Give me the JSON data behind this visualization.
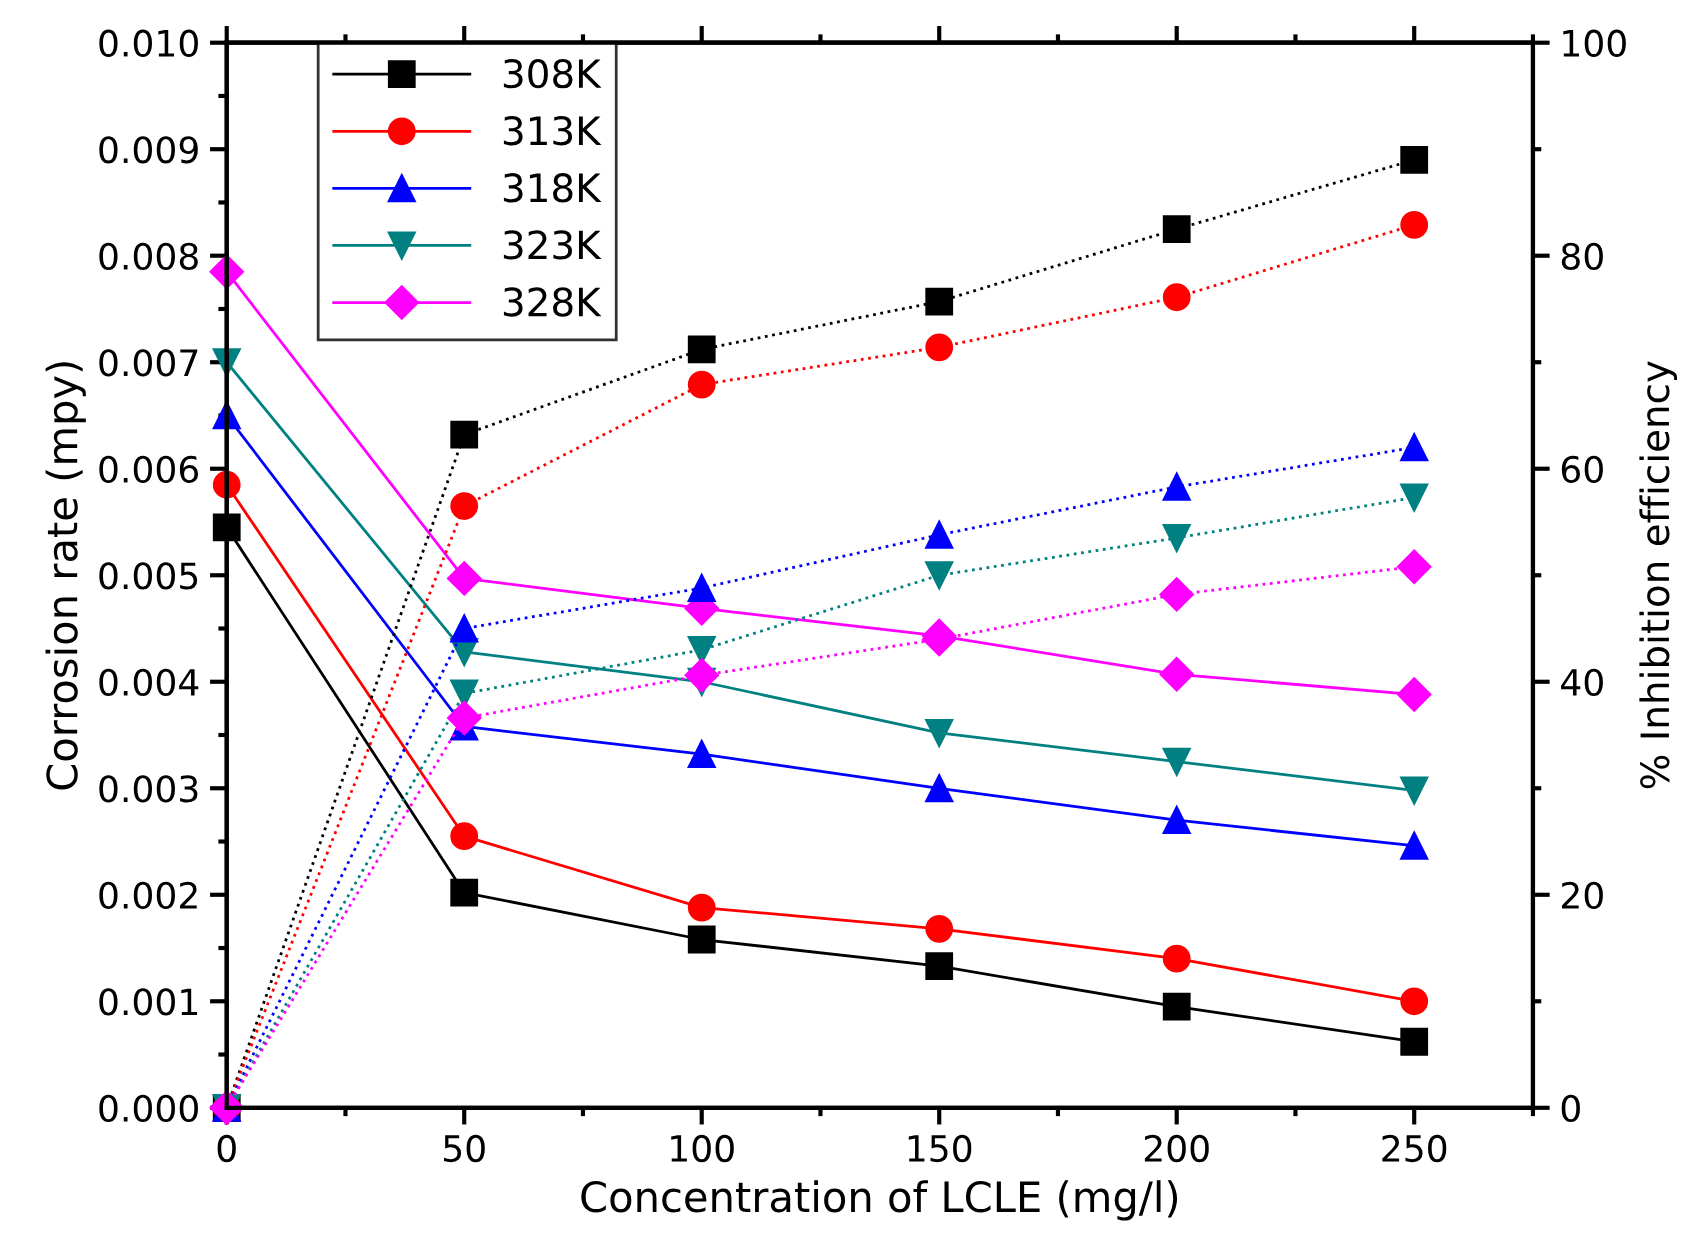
{
  "chart_data": {
    "type": "line",
    "xlabel": "Concentration of LCLE (mg/l)",
    "ylabel": "Corrosion rate (mpy)",
    "y2label": "% Inhibition efficiency",
    "x": [
      0,
      50,
      100,
      150,
      200,
      250
    ],
    "xlim": [
      0,
      275
    ],
    "xticks": [
      0,
      50,
      100,
      150,
      200,
      250
    ],
    "ylim": [
      0,
      0.01
    ],
    "yticks": [
      {
        "value": 0,
        "label": "0.000"
      },
      {
        "value": 0.001,
        "label": "0.001"
      },
      {
        "value": 0.002,
        "label": "0.002"
      },
      {
        "value": 0.003,
        "label": "0.003"
      },
      {
        "value": 0.004,
        "label": "0.004"
      },
      {
        "value": 0.005,
        "label": "0.005"
      },
      {
        "value": 0.006,
        "label": "0.006"
      },
      {
        "value": 0.007,
        "label": "0.007"
      },
      {
        "value": 0.008,
        "label": "0.008"
      },
      {
        "value": 0.009,
        "label": "0.009"
      },
      {
        "value": 0.01,
        "label": "0.010"
      }
    ],
    "y2lim": [
      0,
      100
    ],
    "y2ticks": [
      0,
      20,
      40,
      60,
      80,
      100
    ],
    "grid": false,
    "legend": "top left",
    "series": [
      {
        "name": "308K",
        "color": "#000000",
        "marker": "square",
        "line_style": "solid",
        "values": [
          0.00545,
          0.00202,
          0.00158,
          0.00133,
          0.00095,
          0.00062
        ]
      },
      {
        "name": "313K",
        "color": "#ff0000",
        "marker": "circle",
        "line_style": "solid",
        "values": [
          0.00585,
          0.00255,
          0.00188,
          0.00168,
          0.0014,
          0.001
        ]
      },
      {
        "name": "318K",
        "color": "#0000ff",
        "marker": "triangle",
        "line_style": "solid",
        "values": [
          0.0065,
          0.00358,
          0.00332,
          0.003,
          0.0027,
          0.00246
        ]
      },
      {
        "name": "323K",
        "color": "#008080",
        "marker": "triangle_down",
        "line_style": "solid",
        "values": [
          0.007,
          0.00428,
          0.004,
          0.00352,
          0.00325,
          0.00298
        ]
      },
      {
        "name": "328K",
        "color": "#ff00ff",
        "marker": "diamond",
        "line_style": "solid",
        "values": [
          0.00785,
          0.00497,
          0.00469,
          0.00443,
          0.00407,
          0.00388
        ]
      },
      {
        "color": "#000000",
        "marker": "square",
        "line_style": "dotted",
        "axis": "y2",
        "values": [
          0,
          63.2,
          71.2,
          75.7,
          82.5,
          89.0
        ]
      },
      {
        "color": "#ff0000",
        "marker": "circle",
        "line_style": "dotted",
        "axis": "y2",
        "values": [
          0,
          56.5,
          67.9,
          71.4,
          76.1,
          82.9
        ]
      },
      {
        "color": "#0000ff",
        "marker": "triangle",
        "line_style": "dotted",
        "axis": "y2",
        "values": [
          0,
          45.0,
          48.8,
          53.8,
          58.3,
          62.0
        ]
      },
      {
        "color": "#008080",
        "marker": "triangle_down",
        "line_style": "dotted",
        "axis": "y2",
        "values": [
          0,
          38.9,
          43.0,
          50.0,
          53.5,
          57.3
        ]
      },
      {
        "color": "#ff00ff",
        "marker": "diamond",
        "line_style": "dotted",
        "axis": "y2",
        "values": [
          0,
          36.6,
          40.6,
          44.0,
          48.2,
          50.8
        ]
      }
    ]
  }
}
